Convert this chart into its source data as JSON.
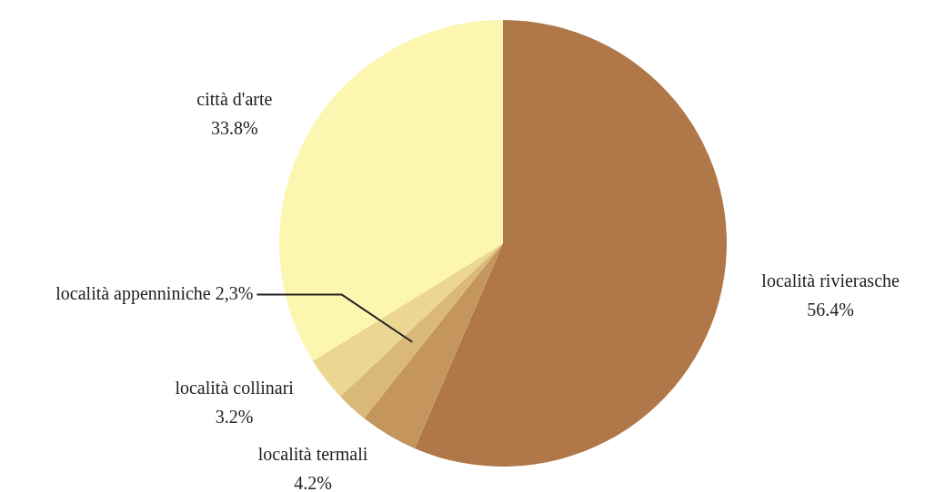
{
  "chart_data": {
    "type": "pie",
    "categories": [
      "località rivierasche",
      "località termali",
      "località appenniniche",
      "località collinari",
      "città d'arte"
    ],
    "values": [
      56.4,
      4.2,
      2.3,
      3.2,
      33.8
    ],
    "colors": [
      "#b07848",
      "#c4955c",
      "#dab878",
      "#ebd792",
      "#fdf6b0"
    ],
    "value_labels": [
      "56.4%",
      "4.2%",
      "2,3%",
      "3.2%",
      "33.8%"
    ],
    "legend": false
  }
}
